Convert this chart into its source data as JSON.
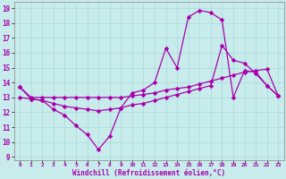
{
  "title": "",
  "xlabel": "Windchill (Refroidissement éolien,°C)",
  "ylabel": "",
  "bg_color": "#c8ecec",
  "line_color": "#aa00aa",
  "grid_color": "#aad8d8",
  "xlim": [
    -0.5,
    23.5
  ],
  "ylim": [
    8.8,
    19.4
  ],
  "yticks": [
    9,
    10,
    11,
    12,
    13,
    14,
    15,
    16,
    17,
    18,
    19
  ],
  "xticks": [
    0,
    1,
    2,
    3,
    4,
    5,
    6,
    7,
    8,
    9,
    10,
    11,
    12,
    13,
    14,
    15,
    16,
    17,
    18,
    19,
    20,
    21,
    22,
    23
  ],
  "line1_x": [
    0,
    1,
    2,
    3,
    4,
    5,
    6,
    7,
    8,
    9,
    10,
    11,
    12,
    13,
    14,
    15,
    16,
    17,
    18,
    19,
    20,
    21,
    22,
    23
  ],
  "line1_y": [
    13.7,
    12.9,
    12.8,
    12.2,
    11.8,
    11.1,
    10.5,
    9.5,
    10.4,
    12.3,
    13.3,
    13.5,
    14.0,
    16.3,
    15.0,
    18.4,
    18.85,
    18.7,
    18.2,
    13.0,
    14.8,
    14.7,
    13.8,
    13.1
  ],
  "line2_x": [
    0,
    1,
    2,
    3,
    4,
    5,
    6,
    7,
    8,
    9,
    10,
    11,
    12,
    13,
    14,
    15,
    16,
    17,
    18,
    19,
    20,
    21,
    22,
    23
  ],
  "line2_y": [
    13.7,
    13.0,
    13.0,
    13.0,
    13.0,
    13.0,
    13.0,
    13.0,
    13.0,
    13.0,
    13.1,
    13.2,
    13.3,
    13.5,
    13.6,
    13.7,
    13.9,
    14.1,
    14.3,
    14.5,
    14.7,
    14.8,
    14.9,
    13.1
  ],
  "line3_x": [
    0,
    1,
    2,
    3,
    4,
    5,
    6,
    7,
    8,
    9,
    10,
    11,
    12,
    13,
    14,
    15,
    16,
    17,
    18,
    19,
    20,
    21,
    22,
    23
  ],
  "line3_y": [
    13.0,
    12.9,
    12.8,
    12.6,
    12.4,
    12.3,
    12.2,
    12.1,
    12.2,
    12.3,
    12.5,
    12.6,
    12.8,
    13.0,
    13.2,
    13.4,
    13.6,
    13.8,
    16.5,
    15.5,
    15.3,
    14.6,
    13.8,
    13.1
  ]
}
